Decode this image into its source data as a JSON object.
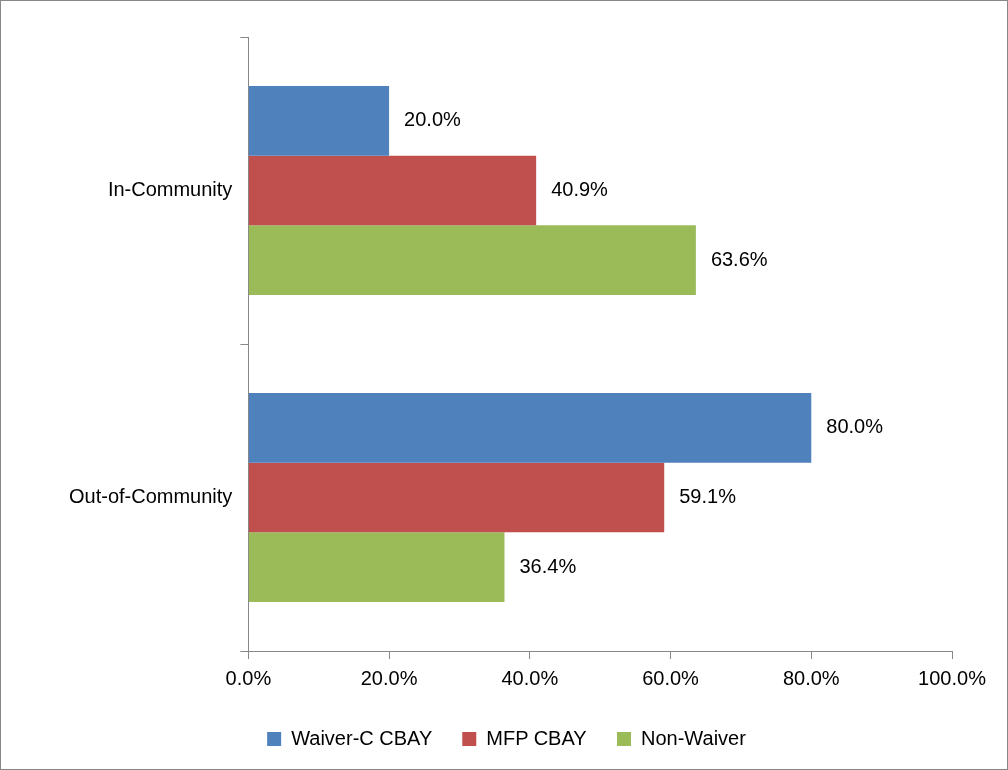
{
  "chart_data": {
    "type": "bar",
    "orientation": "horizontal",
    "categories": [
      "In-Community",
      "Out-of-Community"
    ],
    "series": [
      {
        "name": "Waiver-C CBAY",
        "color": "#4f81bd",
        "values": [
          20.0,
          80.0
        ],
        "value_labels": [
          "20.0%",
          "80.0%"
        ]
      },
      {
        "name": "MFP CBAY",
        "color": "#c0504d",
        "values": [
          40.9,
          59.1
        ],
        "value_labels": [
          "40.9%",
          "59.1%"
        ]
      },
      {
        "name": "Non-Waiver",
        "color": "#9bbb59",
        "values": [
          63.6,
          36.4
        ],
        "value_labels": [
          "63.6%",
          "36.4%"
        ]
      }
    ],
    "xlim": [
      0,
      100
    ],
    "xticks": [
      {
        "value": 0,
        "label": "0.0%"
      },
      {
        "value": 20,
        "label": "20.0%"
      },
      {
        "value": 40,
        "label": "40.0%"
      },
      {
        "value": 60,
        "label": "60.0%"
      },
      {
        "value": 80,
        "label": "80.0%"
      },
      {
        "value": 100,
        "label": "100.0%"
      }
    ],
    "grid": false,
    "legend": "bottom"
  }
}
